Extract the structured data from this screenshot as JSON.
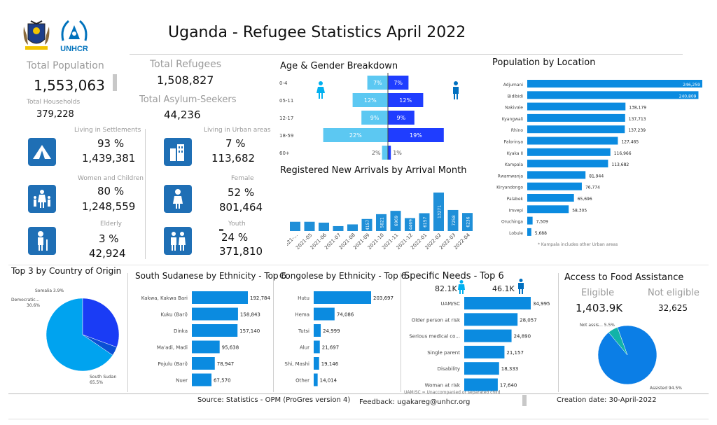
{
  "header": {
    "title": "Uganda  - Refugee Statistics April 2022",
    "unhcr_logo_text": "UNHCR"
  },
  "kpis": {
    "total_population_label": "Total Population",
    "total_population": "1,553,063",
    "total_households_label": "Total Households",
    "total_households": "379,228",
    "total_refugees_label": "Total Refugees",
    "total_refugees": "1,508,827",
    "total_asylum_label": "Total Asylum-Seekers",
    "total_asylum": "44,236",
    "settlements_label": "Living in Settlements",
    "settlements_pct": "93 %",
    "settlements_val": "1,439,381",
    "urban_label": "Living in Urban areas",
    "urban_pct": "7 %",
    "urban_val": "113,682",
    "women_children_label": "Women and Children",
    "women_children_pct": "80 %",
    "women_children_val": "1,248,559",
    "female_label": "Female",
    "female_pct": "52 %",
    "female_val": "801,464",
    "elderly_label": "Elderly",
    "elderly_pct": "3 %",
    "elderly_val": "42,924",
    "youth_label": "Youth",
    "youth_pct": "24 %",
    "youth_val": "371,810"
  },
  "colors": {
    "accent": "#1f6fb5",
    "light_blue": "#00b0f0",
    "dark_blue": "#1a1aff",
    "male": "#0070c0",
    "female": "#00b0f0"
  },
  "footer": {
    "source": "Source: Statistics - OPM (ProGres version 4)",
    "feedback": "Feedback: ugakareg@unhcr.org",
    "creation": "Creation date: 30-April-2022"
  },
  "chart_data": [
    {
      "id": "age_gender",
      "type": "bar",
      "title": "Age & Gender Breakdown",
      "categories": [
        "0-4",
        "05-11",
        "12-17",
        "18-59",
        "60+"
      ],
      "series": [
        {
          "name": "Female",
          "values": [
            7,
            12,
            9,
            22,
            2
          ],
          "labels": [
            "7%",
            "12%",
            "9%",
            "22%",
            "2%"
          ]
        },
        {
          "name": "Male",
          "values": [
            7,
            12,
            9,
            19,
            1
          ],
          "labels": [
            "7%",
            "12%",
            "9%",
            "19%",
            "1%"
          ]
        }
      ]
    },
    {
      "id": "arrivals",
      "type": "bar",
      "title": "Registered New Arrivals by Arrival Month",
      "categories": [
        "2021-...",
        "2021-05",
        "2021-06",
        "2021-07",
        "2021-08",
        "2021-09",
        "2021-10",
        "2021-11",
        "2021-12",
        "2022-01",
        "2022-02",
        "2022-03",
        "2022-04"
      ],
      "values": [
        3200,
        3200,
        2900,
        1700,
        2300,
        4157,
        5821,
        6969,
        4469,
        6157,
        13271,
        7258,
        6236
      ],
      "data_labels": [
        "",
        "",
        "",
        "",
        "",
        "4157",
        "5821",
        "6969",
        "4469",
        "6157",
        "13271",
        "7258",
        "6236"
      ]
    },
    {
      "id": "location",
      "type": "bar",
      "title": "Population by Location",
      "categories": [
        "Adjumani",
        "Bidibidi",
        "Nakivale",
        "Kyangwali",
        "Rhino",
        "Palorinya",
        "Kyaka II",
        "Kampala",
        "Rwamwanja",
        "Kiryandongo",
        "Palabek",
        "Imvepi",
        "Oruchinga",
        "Lobule"
      ],
      "values": [
        246259,
        240809,
        138179,
        137713,
        137239,
        127465,
        116966,
        113682,
        81944,
        76774,
        65696,
        58305,
        7509,
        5688
      ],
      "data_labels": [
        "246,259",
        "240,809",
        "138,179",
        "137,713",
        "137,239",
        "127,465",
        "116,966",
        "113,682",
        "81,944",
        "76,774",
        "65,696",
        "58,305",
        "7,509",
        "5,688"
      ],
      "note": "* Kampala includes other Urban areas"
    },
    {
      "id": "origin",
      "type": "pie",
      "title": "Top 3 by Country of Origin",
      "categories": [
        "South Sudan",
        "Democratic...",
        "Somalia"
      ],
      "values": [
        65.5,
        30.6,
        3.9
      ],
      "data_labels": [
        "South Sudan 65.5%",
        "Democratic... 30.6%",
        "Somalia 3.9%"
      ]
    },
    {
      "id": "ss_ethnicity",
      "type": "bar",
      "title": "South Sudanese by Ethnicity - Top 6",
      "categories": [
        "Kakwa, Kakwa Bari",
        "Kuku (Bari)",
        "Dinka",
        "Ma'adi, Madi",
        "Pojulu (Bari)",
        "Nuer"
      ],
      "values": [
        192784,
        158843,
        157140,
        95638,
        78947,
        67570
      ],
      "data_labels": [
        "192,784",
        "158,843",
        "157,140",
        "95,638",
        "78,947",
        "67,570"
      ]
    },
    {
      "id": "congo_ethnicity",
      "type": "bar",
      "title": "Congolese by Ethnicity - Top 6",
      "categories": [
        "Hutu",
        "Hema",
        "Tutsi",
        "Alur",
        "Shi, Mashi",
        "Other"
      ],
      "values": [
        203697,
        74086,
        24999,
        21697,
        19146,
        14014
      ],
      "data_labels": [
        "203,697",
        "74,086",
        "24,999",
        "21,697",
        "19,146",
        "14,014"
      ]
    },
    {
      "id": "specific_needs",
      "type": "bar",
      "title": "Specific Needs - Top 6",
      "header_female": "82.1K",
      "header_male": "46.1K",
      "categories": [
        "UAM/SC",
        "Older person at risk",
        "Serious medical co...",
        "Single parent",
        "Disability",
        "Woman at risk"
      ],
      "values": [
        34995,
        28057,
        24890,
        21157,
        18333,
        17640
      ],
      "data_labels": [
        "34,995",
        "28,057",
        "24,890",
        "21,157",
        "18,333",
        "17,640"
      ],
      "note": "UAM/SC = Unaccompanied or separated child"
    },
    {
      "id": "food",
      "type": "pie",
      "title": "Access to Food Assistance",
      "eligible_label": "Eligible",
      "eligible": "1,403.9K",
      "not_eligible_label": "Not eligible",
      "not_eligible": "32,625",
      "categories": [
        "Assisted",
        "Not assis..."
      ],
      "values": [
        94.5,
        5.5
      ],
      "data_labels": [
        "Assisted 94.5%",
        "Not assis... 5.5%"
      ]
    }
  ]
}
